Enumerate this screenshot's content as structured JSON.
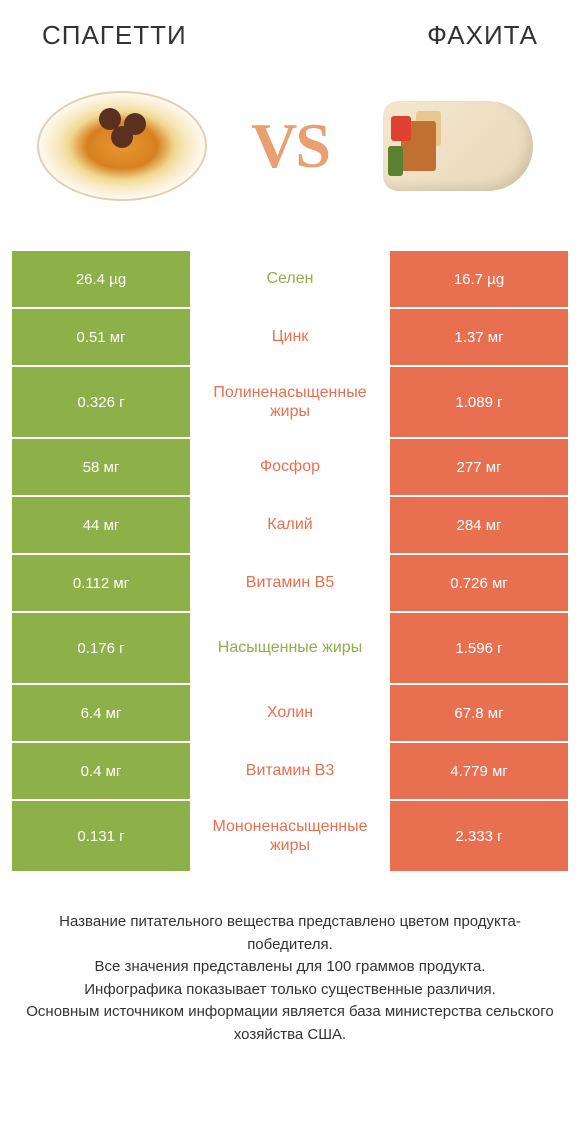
{
  "header": {
    "left_title": "СПАГЕТТИ",
    "right_title": "ФАХИТА"
  },
  "vs_label": "VS",
  "colors": {
    "green": "#8eb048",
    "orange": "#e87050",
    "text": "#333333",
    "background": "#ffffff"
  },
  "rows": [
    {
      "left": "26.4 µg",
      "label": "Селен",
      "right": "16.7 µg",
      "winner": "left",
      "tall": false
    },
    {
      "left": "0.51 мг",
      "label": "Цинк",
      "right": "1.37 мг",
      "winner": "right",
      "tall": false
    },
    {
      "left": "0.326 г",
      "label": "Полиненасыщенные жиры",
      "right": "1.089 г",
      "winner": "right",
      "tall": true
    },
    {
      "left": "58 мг",
      "label": "Фосфор",
      "right": "277 мг",
      "winner": "right",
      "tall": false
    },
    {
      "left": "44 мг",
      "label": "Калий",
      "right": "284 мг",
      "winner": "right",
      "tall": false
    },
    {
      "left": "0.112 мг",
      "label": "Витамин B5",
      "right": "0.726 мг",
      "winner": "right",
      "tall": false
    },
    {
      "left": "0.176 г",
      "label": "Насыщенные жиры",
      "right": "1.596 г",
      "winner": "left",
      "tall": true
    },
    {
      "left": "6.4 мг",
      "label": "Холин",
      "right": "67.8 мг",
      "winner": "right",
      "tall": false
    },
    {
      "left": "0.4 мг",
      "label": "Витамин B3",
      "right": "4.779 мг",
      "winner": "right",
      "tall": false
    },
    {
      "left": "0.131 г",
      "label": "Мононенасыщенные жиры",
      "right": "2.333 г",
      "winner": "right",
      "tall": true
    }
  ],
  "footer": {
    "line1": "Название питательного вещества представлено цветом продукта-победителя.",
    "line2": "Все значения представлены для 100 граммов продукта.",
    "line3": "Инфографика показывает только существенные различия.",
    "line4": "Основным источником информации является база министерства сельского хозяйства США."
  }
}
